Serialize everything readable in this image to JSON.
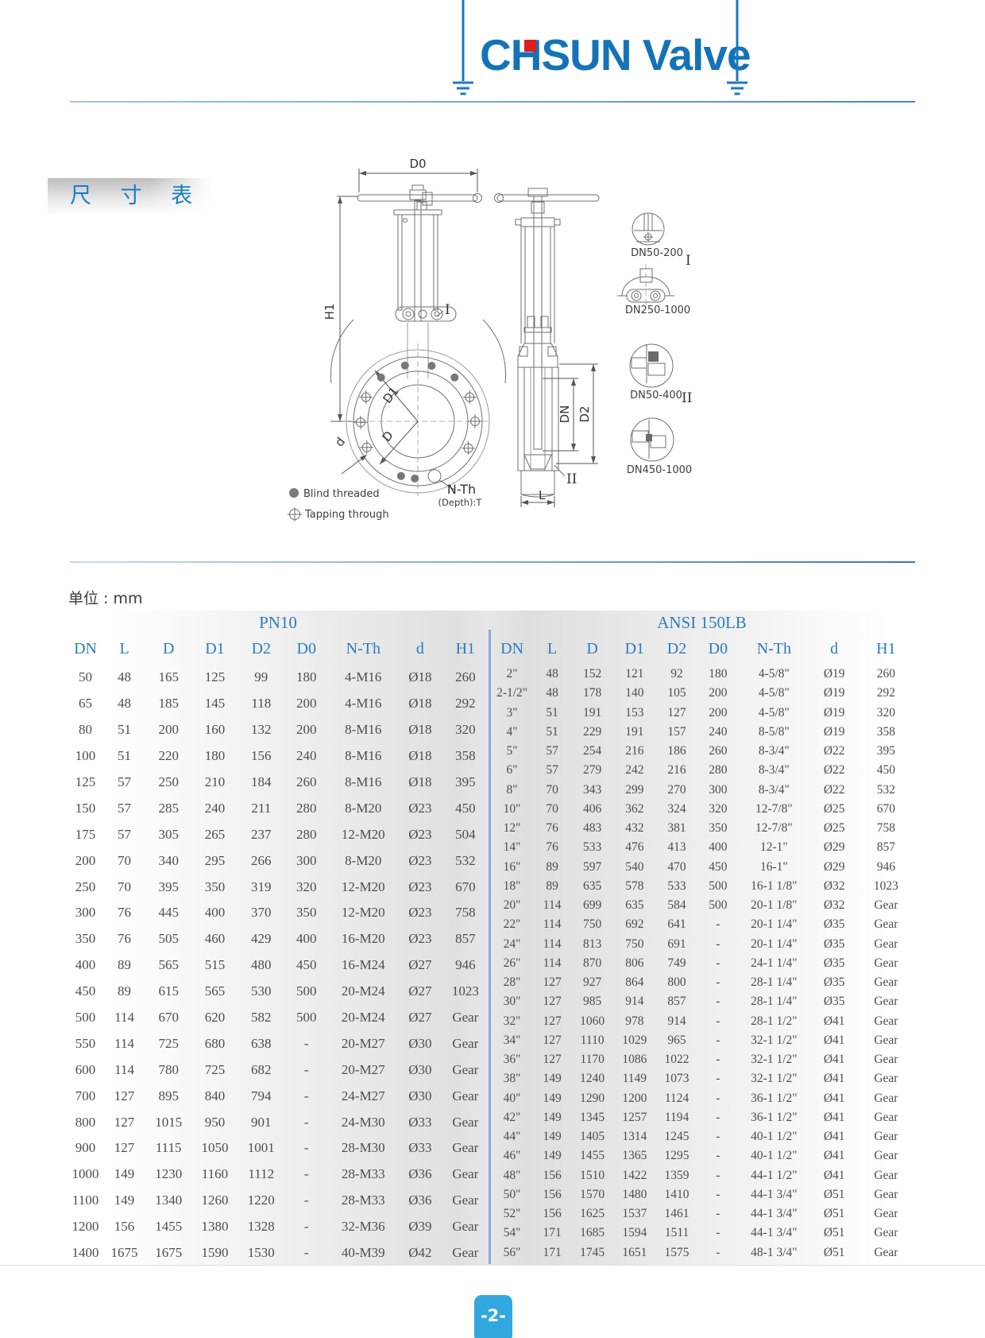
{
  "header": {
    "logo_text": "CHSUN Valve",
    "logo_color": "#1473b8",
    "logo_dot_color": "#e01d1d"
  },
  "section": {
    "title": "尺 寸 表"
  },
  "units_label": "单位 : mm",
  "drawing": {
    "dims": {
      "d0": "D0",
      "h1": "H1",
      "d1": "D1",
      "d": "D",
      "d_small": "d",
      "dn": "DN",
      "d2": "D2",
      "l": "L"
    },
    "thread_label": "N-Th",
    "depth_label": "(Depth):T",
    "roman_i": "I",
    "roman_ii": "II",
    "details": [
      "DN50-200",
      "DN250-1000",
      "DN50-400",
      "DN450-1000"
    ],
    "legend": {
      "blind": "Blind threaded",
      "tapping": "Tapping through"
    }
  },
  "tables": {
    "pn10": {
      "title": "PN10",
      "headers": [
        "DN",
        "L",
        "D",
        "D1",
        "D2",
        "D0",
        "N-Th",
        "d",
        "H1"
      ],
      "rows": [
        [
          "50",
          "48",
          "165",
          "125",
          "99",
          "180",
          "4-M16",
          "Ø18",
          "260"
        ],
        [
          "65",
          "48",
          "185",
          "145",
          "118",
          "200",
          "4-M16",
          "Ø18",
          "292"
        ],
        [
          "80",
          "51",
          "200",
          "160",
          "132",
          "200",
          "8-M16",
          "Ø18",
          "320"
        ],
        [
          "100",
          "51",
          "220",
          "180",
          "156",
          "240",
          "8-M16",
          "Ø18",
          "358"
        ],
        [
          "125",
          "57",
          "250",
          "210",
          "184",
          "260",
          "8-M16",
          "Ø18",
          "395"
        ],
        [
          "150",
          "57",
          "285",
          "240",
          "211",
          "280",
          "8-M20",
          "Ø23",
          "450"
        ],
        [
          "175",
          "57",
          "305",
          "265",
          "237",
          "280",
          "12-M20",
          "Ø23",
          "504"
        ],
        [
          "200",
          "70",
          "340",
          "295",
          "266",
          "300",
          "8-M20",
          "Ø23",
          "532"
        ],
        [
          "250",
          "70",
          "395",
          "350",
          "319",
          "320",
          "12-M20",
          "Ø23",
          "670"
        ],
        [
          "300",
          "76",
          "445",
          "400",
          "370",
          "350",
          "12-M20",
          "Ø23",
          "758"
        ],
        [
          "350",
          "76",
          "505",
          "460",
          "429",
          "400",
          "16-M20",
          "Ø23",
          "857"
        ],
        [
          "400",
          "89",
          "565",
          "515",
          "480",
          "450",
          "16-M24",
          "Ø27",
          "946"
        ],
        [
          "450",
          "89",
          "615",
          "565",
          "530",
          "500",
          "20-M24",
          "Ø27",
          "1023"
        ],
        [
          "500",
          "114",
          "670",
          "620",
          "582",
          "500",
          "20-M24",
          "Ø27",
          "Gear"
        ],
        [
          "550",
          "114",
          "725",
          "680",
          "638",
          "-",
          "20-M27",
          "Ø30",
          "Gear"
        ],
        [
          "600",
          "114",
          "780",
          "725",
          "682",
          "-",
          "20-M27",
          "Ø30",
          "Gear"
        ],
        [
          "700",
          "127",
          "895",
          "840",
          "794",
          "-",
          "24-M27",
          "Ø30",
          "Gear"
        ],
        [
          "800",
          "127",
          "1015",
          "950",
          "901",
          "-",
          "24-M30",
          "Ø33",
          "Gear"
        ],
        [
          "900",
          "127",
          "1115",
          "1050",
          "1001",
          "-",
          "28-M30",
          "Ø33",
          "Gear"
        ],
        [
          "1000",
          "149",
          "1230",
          "1160",
          "1112",
          "-",
          "28-M33",
          "Ø36",
          "Gear"
        ],
        [
          "1100",
          "149",
          "1340",
          "1260",
          "1220",
          "-",
          "28-M33",
          "Ø36",
          "Gear"
        ],
        [
          "1200",
          "156",
          "1455",
          "1380",
          "1328",
          "-",
          "32-M36",
          "Ø39",
          "Gear"
        ],
        [
          "1400",
          "1675",
          "1675",
          "1590",
          "1530",
          "-",
          "40-M39",
          "Ø42",
          "Gear"
        ]
      ]
    },
    "ansi": {
      "title": "ANSI 150LB",
      "headers": [
        "DN",
        "L",
        "D",
        "D1",
        "D2",
        "D0",
        "N-Th",
        "d",
        "H1"
      ],
      "rows": [
        [
          "2\"",
          "48",
          "152",
          "121",
          "92",
          "180",
          "4-5/8\"",
          "Ø19",
          "260"
        ],
        [
          "2-1/2\"",
          "48",
          "178",
          "140",
          "105",
          "200",
          "4-5/8\"",
          "Ø19",
          "292"
        ],
        [
          "3\"",
          "51",
          "191",
          "153",
          "127",
          "200",
          "4-5/8\"",
          "Ø19",
          "320"
        ],
        [
          "4\"",
          "51",
          "229",
          "191",
          "157",
          "240",
          "8-5/8\"",
          "Ø19",
          "358"
        ],
        [
          "5\"",
          "57",
          "254",
          "216",
          "186",
          "260",
          "8-3/4\"",
          "Ø22",
          "395"
        ],
        [
          "6\"",
          "57",
          "279",
          "242",
          "216",
          "280",
          "8-3/4\"",
          "Ø22",
          "450"
        ],
        [
          "8\"",
          "70",
          "343",
          "299",
          "270",
          "300",
          "8-3/4\"",
          "Ø22",
          "532"
        ],
        [
          "10\"",
          "70",
          "406",
          "362",
          "324",
          "320",
          "12-7/8\"",
          "Ø25",
          "670"
        ],
        [
          "12\"",
          "76",
          "483",
          "432",
          "381",
          "350",
          "12-7/8\"",
          "Ø25",
          "758"
        ],
        [
          "14\"",
          "76",
          "533",
          "476",
          "413",
          "400",
          "12-1\"",
          "Ø29",
          "857"
        ],
        [
          "16\"",
          "89",
          "597",
          "540",
          "470",
          "450",
          "16-1\"",
          "Ø29",
          "946"
        ],
        [
          "18\"",
          "89",
          "635",
          "578",
          "533",
          "500",
          "16-1 1/8\"",
          "Ø32",
          "1023"
        ],
        [
          "20\"",
          "114",
          "699",
          "635",
          "584",
          "500",
          "20-1 1/8\"",
          "Ø32",
          "Gear"
        ],
        [
          "22\"",
          "114",
          "750",
          "692",
          "641",
          "-",
          "20-1 1/4\"",
          "Ø35",
          "Gear"
        ],
        [
          "24\"",
          "114",
          "813",
          "750",
          "691",
          "-",
          "20-1 1/4\"",
          "Ø35",
          "Gear"
        ],
        [
          "26\"",
          "114",
          "870",
          "806",
          "749",
          "-",
          "24-1 1/4\"",
          "Ø35",
          "Gear"
        ],
        [
          "28\"",
          "127",
          "927",
          "864",
          "800",
          "-",
          "28-1 1/4\"",
          "Ø35",
          "Gear"
        ],
        [
          "30\"",
          "127",
          "985",
          "914",
          "857",
          "-",
          "28-1 1/4\"",
          "Ø35",
          "Gear"
        ],
        [
          "32\"",
          "127",
          "1060",
          "978",
          "914",
          "-",
          "28-1 1/2\"",
          "Ø41",
          "Gear"
        ],
        [
          "34\"",
          "127",
          "1110",
          "1029",
          "965",
          "-",
          "32-1 1/2\"",
          "Ø41",
          "Gear"
        ],
        [
          "36\"",
          "127",
          "1170",
          "1086",
          "1022",
          "-",
          "32-1 1/2\"",
          "Ø41",
          "Gear"
        ],
        [
          "38\"",
          "149",
          "1240",
          "1149",
          "1073",
          "-",
          "32-1 1/2\"",
          "Ø41",
          "Gear"
        ],
        [
          "40\"",
          "149",
          "1290",
          "1200",
          "1124",
          "-",
          "36-1 1/2\"",
          "Ø41",
          "Gear"
        ],
        [
          "42\"",
          "149",
          "1345",
          "1257",
          "1194",
          "-",
          "36-1 1/2\"",
          "Ø41",
          "Gear"
        ],
        [
          "44\"",
          "149",
          "1405",
          "1314",
          "1245",
          "-",
          "40-1 1/2\"",
          "Ø41",
          "Gear"
        ],
        [
          "46\"",
          "149",
          "1455",
          "1365",
          "1295",
          "-",
          "40-1 1/2\"",
          "Ø41",
          "Gear"
        ],
        [
          "48\"",
          "156",
          "1510",
          "1422",
          "1359",
          "-",
          "44-1 1/2\"",
          "Ø41",
          "Gear"
        ],
        [
          "50\"",
          "156",
          "1570",
          "1480",
          "1410",
          "-",
          "44-1 3/4\"",
          "Ø51",
          "Gear"
        ],
        [
          "52\"",
          "156",
          "1625",
          "1537",
          "1461",
          "-",
          "44-1 3/4\"",
          "Ø51",
          "Gear"
        ],
        [
          "54\"",
          "171",
          "1685",
          "1594",
          "1511",
          "-",
          "44-1 3/4\"",
          "Ø51",
          "Gear"
        ],
        [
          "56\"",
          "171",
          "1745",
          "1651",
          "1575",
          "-",
          "48-1 3/4\"",
          "Ø51",
          "Gear"
        ]
      ]
    }
  },
  "footer": {
    "page_number": "-2-"
  }
}
